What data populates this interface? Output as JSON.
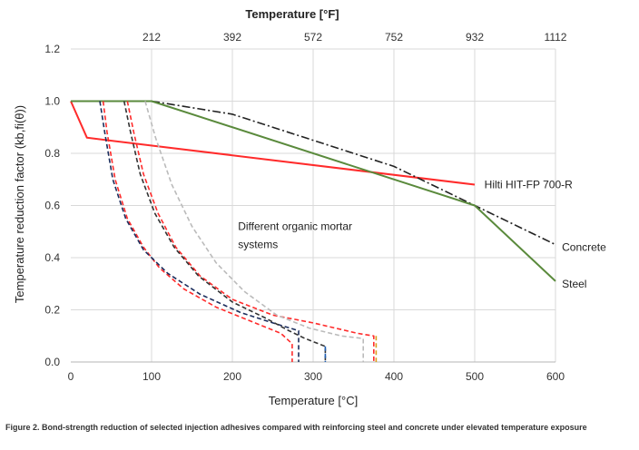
{
  "chart_data": {
    "type": "line",
    "xlabel": "Temperature [°C]",
    "ylabel": "Temperature reduction factor (kb,fi(θ))",
    "x2label": "Temperature [°F]",
    "xlim": [
      0,
      600
    ],
    "ylim": [
      0,
      1.2
    ],
    "x_ticks": [
      0,
      100,
      200,
      300,
      400,
      500,
      600
    ],
    "y_ticks": [
      "0.0",
      "0.2",
      "0.4",
      "0.6",
      "0.8",
      "1.0",
      "1.2"
    ],
    "x2_ticks": [
      {
        "label": "212",
        "at_c": 100
      },
      {
        "label": "392",
        "at_c": 200
      },
      {
        "label": "572",
        "at_c": 300
      },
      {
        "label": "752",
        "at_c": 400
      },
      {
        "label": "932",
        "at_c": 500
      },
      {
        "label": "1112",
        "at_c": 600
      }
    ],
    "grid": "vertical and horizontal major gridlines",
    "series": [
      {
        "name": "Hilti HIT-FP 700-R",
        "color": "#ff2b2b",
        "style": "solid",
        "points": [
          [
            0,
            1.0
          ],
          [
            20,
            0.86
          ],
          [
            500,
            0.68
          ]
        ]
      },
      {
        "name": "Concrete",
        "color": "#222222",
        "style": "dashdot",
        "points": [
          [
            100,
            1.0
          ],
          [
            200,
            0.95
          ],
          [
            300,
            0.85
          ],
          [
            400,
            0.75
          ],
          [
            500,
            0.6
          ],
          [
            600,
            0.45
          ]
        ]
      },
      {
        "name": "Steel",
        "color": "#5a8a3c",
        "style": "solid",
        "points": [
          [
            0,
            1.0
          ],
          [
            100,
            1.0
          ],
          [
            500,
            0.6
          ],
          [
            600,
            0.31
          ]
        ]
      },
      {
        "name": "",
        "color": "#ff2b2b",
        "style": "dashed",
        "points": [
          [
            40,
            1.0
          ],
          [
            45,
            0.88
          ],
          [
            55,
            0.7
          ],
          [
            70,
            0.55
          ],
          [
            90,
            0.44
          ],
          [
            110,
            0.36
          ],
          [
            140,
            0.28
          ],
          [
            180,
            0.21
          ],
          [
            220,
            0.16
          ],
          [
            260,
            0.11
          ],
          [
            274,
            0.07
          ],
          [
            274,
            0.0
          ]
        ]
      },
      {
        "name": "",
        "color": "#1b2d5c",
        "style": "dashed",
        "points": [
          [
            36,
            1.0
          ],
          [
            42,
            0.88
          ],
          [
            52,
            0.7
          ],
          [
            68,
            0.55
          ],
          [
            90,
            0.43
          ],
          [
            120,
            0.34
          ],
          [
            160,
            0.26
          ],
          [
            210,
            0.19
          ],
          [
            250,
            0.15
          ],
          [
            282,
            0.12
          ],
          [
            282,
            0.0
          ]
        ]
      },
      {
        "name": "",
        "color": "#ff2b2b",
        "style": "dashed",
        "points": [
          [
            70,
            1.0
          ],
          [
            78,
            0.88
          ],
          [
            90,
            0.72
          ],
          [
            108,
            0.57
          ],
          [
            130,
            0.44
          ],
          [
            160,
            0.33
          ],
          [
            200,
            0.24
          ],
          [
            250,
            0.18
          ],
          [
            300,
            0.15
          ],
          [
            355,
            0.11
          ],
          [
            375,
            0.1
          ],
          [
            375,
            0.0
          ]
        ]
      },
      {
        "name": "",
        "color": "#333333",
        "style": "dashed",
        "points": [
          [
            66,
            1.0
          ],
          [
            74,
            0.88
          ],
          [
            86,
            0.72
          ],
          [
            104,
            0.57
          ],
          [
            128,
            0.44
          ],
          [
            158,
            0.33
          ],
          [
            200,
            0.23
          ],
          [
            240,
            0.17
          ],
          [
            270,
            0.12
          ],
          [
            290,
            0.09
          ],
          [
            315,
            0.06
          ],
          [
            315,
            0.0
          ]
        ]
      },
      {
        "name": "",
        "color": "#bbbbbb",
        "style": "dashed",
        "points": [
          [
            92,
            1.0
          ],
          [
            105,
            0.86
          ],
          [
            125,
            0.68
          ],
          [
            150,
            0.52
          ],
          [
            180,
            0.38
          ],
          [
            215,
            0.27
          ],
          [
            255,
            0.18
          ],
          [
            295,
            0.13
          ],
          [
            335,
            0.1
          ],
          [
            362,
            0.09
          ],
          [
            362,
            0.0
          ]
        ]
      },
      {
        "name": "",
        "color": "#1f5fb5",
        "style": "dashed",
        "points": [
          [
            315,
            0.06
          ],
          [
            315,
            0.0
          ]
        ]
      },
      {
        "name": "",
        "color": "#d9a020",
        "style": "dashed",
        "points": [
          [
            378,
            0.1
          ],
          [
            378,
            0.0
          ]
        ]
      }
    ],
    "annotations": [
      {
        "text": "Hilti HIT-FP 700-R",
        "at": [
          512,
          0.68
        ]
      },
      {
        "text": "Concrete",
        "at": [
          608,
          0.44
        ]
      },
      {
        "text": "Steel",
        "at": [
          608,
          0.3
        ]
      },
      {
        "text": "Different organic mortar",
        "at": [
          207,
          0.52
        ]
      },
      {
        "text": "systems",
        "at": [
          207,
          0.45
        ]
      }
    ],
    "caption": "Figure 2. Bond-strength reduction of selected injection adhesives compared with reinforcing steel and concrete under elevated temperature exposure"
  }
}
